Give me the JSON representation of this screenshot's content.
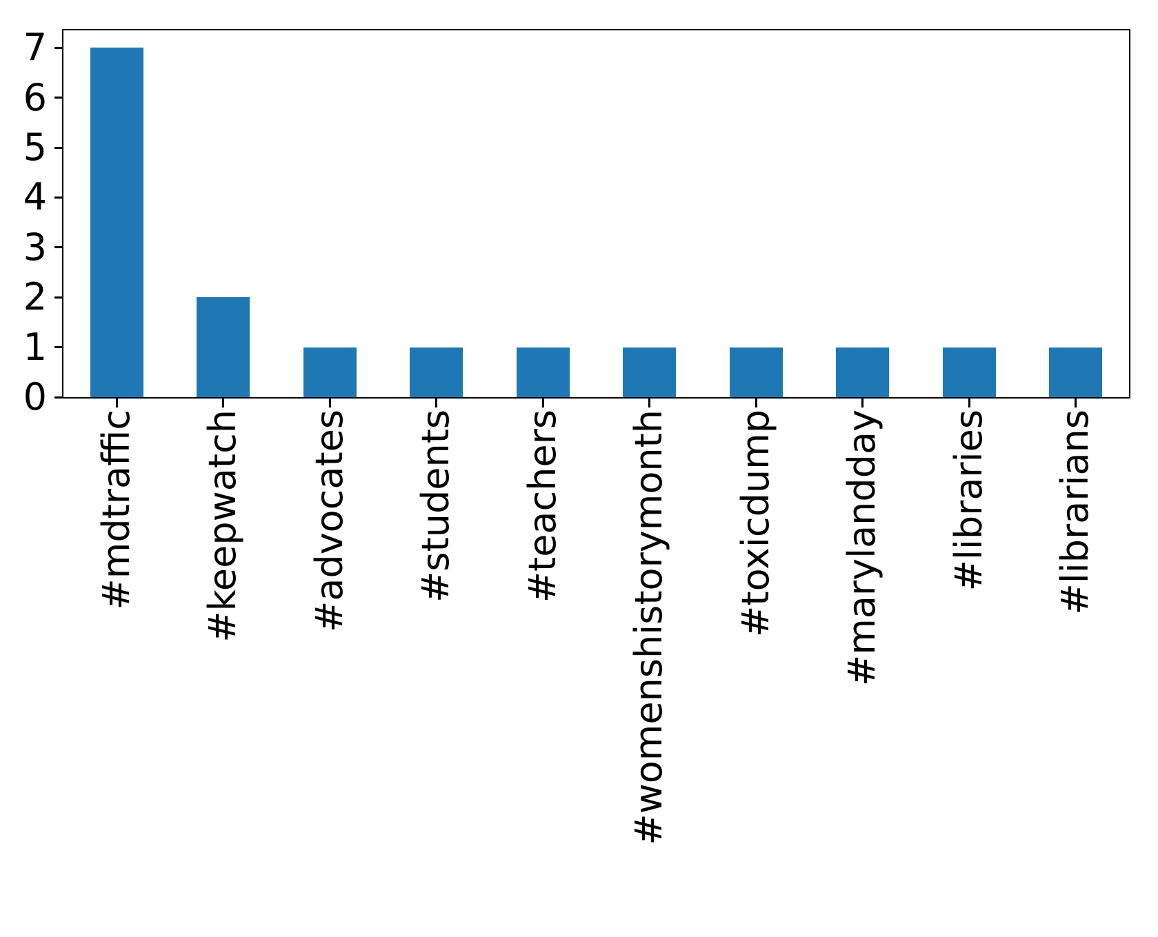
{
  "chart_data": {
    "type": "bar",
    "categories": [
      "#mdtraffic",
      "#keepwatch",
      "#advocates",
      "#students",
      "#teachers",
      "#womenshistorymonth",
      "#toxicdump",
      "#marylandday",
      "#libraries",
      "#librarians"
    ],
    "values": [
      7,
      2,
      1,
      1,
      1,
      1,
      1,
      1,
      1,
      1
    ],
    "title": "",
    "xlabel": "",
    "ylabel": "",
    "ylim": [
      0,
      7.35
    ],
    "yticks": [
      0,
      1,
      2,
      3,
      4,
      5,
      6,
      7
    ],
    "bar_color": "#1f77b4",
    "axis_color": "#000000",
    "grid": "off",
    "legend": "none"
  }
}
